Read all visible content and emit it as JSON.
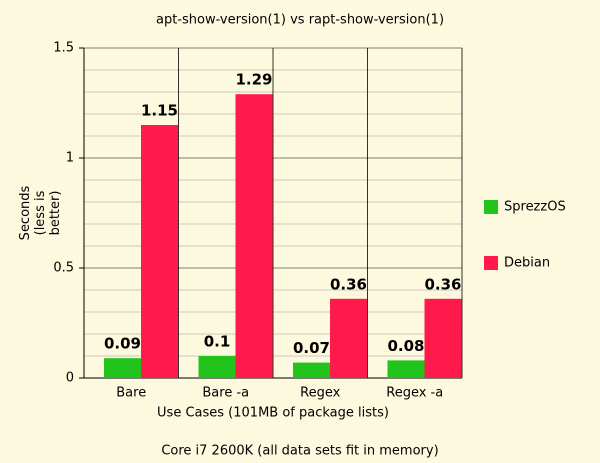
{
  "chart_data": {
    "type": "bar",
    "title": "apt-show-version(1) vs rapt-show-version(1)",
    "xlabel": "Use Cases (101MB of package lists)",
    "ylabel": [
      "Seconds",
      "(less is",
      "better)"
    ],
    "footnote": "Core i7 2600K (all data sets fit in memory)",
    "categories": [
      "Bare",
      "Bare -a",
      "Regex",
      "Regex -a"
    ],
    "series": [
      {
        "name": "SprezzOS",
        "color": "#22c41c",
        "values": [
          0.09,
          0.1,
          0.07,
          0.08
        ]
      },
      {
        "name": "Debian",
        "color": "#ff1a4b",
        "values": [
          1.15,
          1.29,
          0.36,
          0.36
        ]
      }
    ],
    "ylim": [
      0,
      1.5
    ],
    "yticks": [
      0,
      0.5,
      1,
      1.5
    ],
    "minor_yticks": [
      0.1,
      0.2,
      0.3,
      0.4,
      0.6,
      0.7,
      0.8,
      0.9,
      1.1,
      1.2,
      1.3,
      1.4
    ],
    "grid": true,
    "legend": "right"
  }
}
